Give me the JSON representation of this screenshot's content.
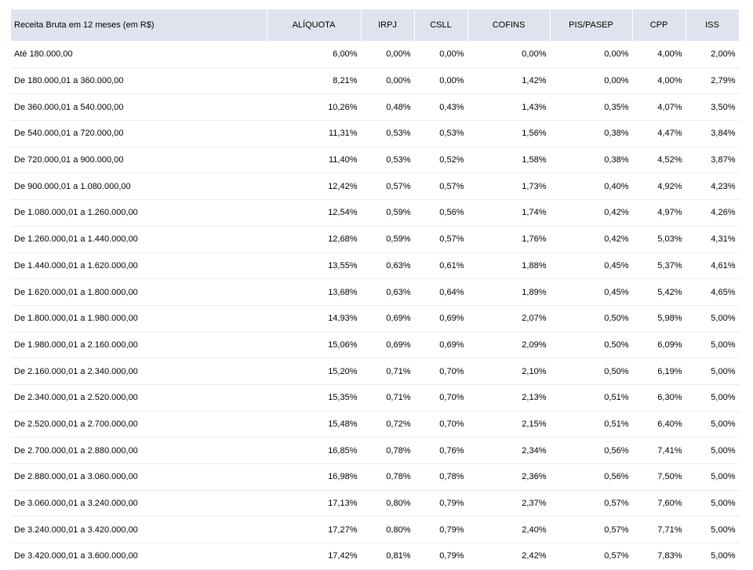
{
  "table": {
    "headers": [
      "Receita Bruta em 12 meses (em R$)",
      "ALÍQUOTA",
      "IRPJ",
      "CSLL",
      "COFINS",
      "PIS/PASEP",
      "CPP",
      "ISS"
    ],
    "rows": [
      [
        "Até 180.000,00",
        "6,00%",
        "0,00%",
        "0,00%",
        "0,00%",
        "0,00%",
        "4,00%",
        "2,00%"
      ],
      [
        "De 180.000,01 a 360.000,00",
        "8,21%",
        "0,00%",
        "0,00%",
        "1,42%",
        "0,00%",
        "4,00%",
        "2,79%"
      ],
      [
        "De 360.000,01 a 540.000,00",
        "10,26%",
        "0,48%",
        "0,43%",
        "1,43%",
        "0,35%",
        "4,07%",
        "3,50%"
      ],
      [
        "De 540.000,01 a 720.000,00",
        "11,31%",
        "0,53%",
        "0,53%",
        "1,56%",
        "0,38%",
        "4,47%",
        "3,84%"
      ],
      [
        "De 720.000,01 a 900.000,00",
        "11,40%",
        "0,53%",
        "0,52%",
        "1,58%",
        "0,38%",
        "4,52%",
        "3,87%"
      ],
      [
        "De 900.000,01 a 1.080.000,00",
        "12,42%",
        "0,57%",
        "0,57%",
        "1,73%",
        "0,40%",
        "4,92%",
        "4,23%"
      ],
      [
        "De 1.080.000,01 a 1.260.000,00",
        "12,54%",
        "0,59%",
        "0,56%",
        "1,74%",
        "0,42%",
        "4,97%",
        "4,26%"
      ],
      [
        "De 1.260.000,01 a 1.440.000,00",
        "12,68%",
        "0,59%",
        "0,57%",
        "1,76%",
        "0,42%",
        "5,03%",
        "4,31%"
      ],
      [
        "De 1.440.000,01 a 1.620.000,00",
        "13,55%",
        "0,63%",
        "0,61%",
        "1,88%",
        "0,45%",
        "5,37%",
        "4,61%"
      ],
      [
        "De 1.620.000,01 a 1.800.000,00",
        "13,68%",
        "0,63%",
        "0,64%",
        "1,89%",
        "0,45%",
        "5,42%",
        "4,65%"
      ],
      [
        "De 1.800.000,01 a 1.980.000,00",
        "14,93%",
        "0,69%",
        "0,69%",
        "2,07%",
        "0,50%",
        "5,98%",
        "5,00%"
      ],
      [
        "De 1.980.000,01 a 2.160.000,00",
        "15,06%",
        "0,69%",
        "0,69%",
        "2,09%",
        "0,50%",
        "6,09%",
        "5,00%"
      ],
      [
        "De 2.160.000,01 a 2.340.000,00",
        "15,20%",
        "0,71%",
        "0,70%",
        "2,10%",
        "0,50%",
        "6,19%",
        "5,00%"
      ],
      [
        "De 2.340.000,01 a 2.520.000,00",
        "15,35%",
        "0,71%",
        "0,70%",
        "2,13%",
        "0,51%",
        "6,30%",
        "5,00%"
      ],
      [
        "De 2.520.000,01 a 2.700.000,00",
        "15,48%",
        "0,72%",
        "0,70%",
        "2,15%",
        "0,51%",
        "6,40%",
        "5,00%"
      ],
      [
        "De 2.700.000,01 a 2.880.000,00",
        "16,85%",
        "0,78%",
        "0,76%",
        "2,34%",
        "0,56%",
        "7,41%",
        "5,00%"
      ],
      [
        "De 2.880.000,01 a 3.060.000,00",
        "16,98%",
        "0,78%",
        "0,78%",
        "2,36%",
        "0,56%",
        "7,50%",
        "5,00%"
      ],
      [
        "De 3.060.000,01 a 3.240.000,00",
        "17,13%",
        "0,80%",
        "0,79%",
        "2,37%",
        "0,57%",
        "7,60%",
        "5,00%"
      ],
      [
        "De 3.240.000,01 a 3.420.000,00",
        "17,27%",
        "0,80%",
        "0,79%",
        "2,40%",
        "0,57%",
        "7,71%",
        "5,00%"
      ],
      [
        "De 3.420.000,01 a 3.600.000,00",
        "17,42%",
        "0,81%",
        "0,79%",
        "2,42%",
        "0,57%",
        "7,83%",
        "5,00%"
      ]
    ]
  },
  "colors": {
    "header_bg": "#dfe3ee",
    "row_bg": "#f7f8fb"
  }
}
